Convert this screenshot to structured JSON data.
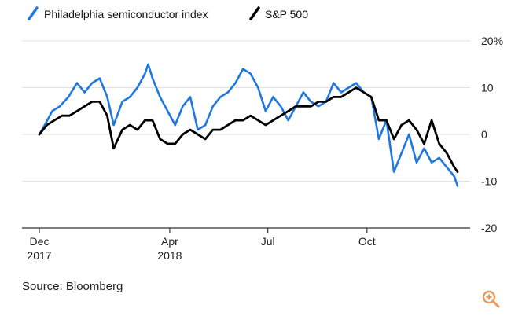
{
  "chart_data": {
    "type": "line",
    "title": "",
    "xlabel": "",
    "ylabel": "",
    "ylim": [
      -20,
      20
    ],
    "xlim": [
      "2017-12-01",
      "2018-12-24"
    ],
    "y_ticks": [
      20,
      10,
      0,
      -10,
      -20
    ],
    "y_tick_labels": [
      "20%",
      "10",
      "0",
      "-10",
      "-20"
    ],
    "x_ticks": [
      {
        "date": "2017-12-01",
        "label": "Dec",
        "sublabel": "2017"
      },
      {
        "date": "2018-04-01",
        "label": "Apr",
        "sublabel": "2018"
      },
      {
        "date": "2018-07-01",
        "label": "Jul",
        "sublabel": ""
      },
      {
        "date": "2018-10-01",
        "label": "Oct",
        "sublabel": ""
      }
    ],
    "grid": true,
    "legend_position": "top-left",
    "series": [
      {
        "name": "Philadelphia semiconductor index",
        "color": "#1f77e0",
        "points": [
          [
            "2017-12-01",
            0
          ],
          [
            "2017-12-06",
            2
          ],
          [
            "2017-12-13",
            5
          ],
          [
            "2017-12-20",
            6
          ],
          [
            "2017-12-28",
            8
          ],
          [
            "2018-01-05",
            11
          ],
          [
            "2018-01-12",
            9
          ],
          [
            "2018-01-19",
            11
          ],
          [
            "2018-01-26",
            12
          ],
          [
            "2018-02-02",
            8
          ],
          [
            "2018-02-08",
            2
          ],
          [
            "2018-02-16",
            7
          ],
          [
            "2018-02-23",
            8
          ],
          [
            "2018-03-02",
            10
          ],
          [
            "2018-03-09",
            13
          ],
          [
            "2018-03-12",
            15
          ],
          [
            "2018-03-16",
            12
          ],
          [
            "2018-03-23",
            8
          ],
          [
            "2018-03-30",
            5
          ],
          [
            "2018-04-06",
            2
          ],
          [
            "2018-04-13",
            6
          ],
          [
            "2018-04-20",
            8
          ],
          [
            "2018-04-27",
            1
          ],
          [
            "2018-05-04",
            2
          ],
          [
            "2018-05-11",
            6
          ],
          [
            "2018-05-18",
            8
          ],
          [
            "2018-05-25",
            9
          ],
          [
            "2018-06-01",
            11
          ],
          [
            "2018-06-08",
            14
          ],
          [
            "2018-06-15",
            13
          ],
          [
            "2018-06-22",
            10
          ],
          [
            "2018-06-29",
            5
          ],
          [
            "2018-07-06",
            8
          ],
          [
            "2018-07-13",
            6
          ],
          [
            "2018-07-20",
            3
          ],
          [
            "2018-07-27",
            6
          ],
          [
            "2018-08-03",
            9
          ],
          [
            "2018-08-10",
            7
          ],
          [
            "2018-08-17",
            6
          ],
          [
            "2018-08-24",
            7
          ],
          [
            "2018-08-31",
            11
          ],
          [
            "2018-09-07",
            9
          ],
          [
            "2018-09-14",
            10
          ],
          [
            "2018-09-21",
            11
          ],
          [
            "2018-09-28",
            9
          ],
          [
            "2018-10-05",
            8
          ],
          [
            "2018-10-12",
            -1
          ],
          [
            "2018-10-19",
            3
          ],
          [
            "2018-10-26",
            -8
          ],
          [
            "2018-11-02",
            -4
          ],
          [
            "2018-11-09",
            0
          ],
          [
            "2018-11-16",
            -6
          ],
          [
            "2018-11-23",
            -3
          ],
          [
            "2018-11-30",
            -6
          ],
          [
            "2018-12-07",
            -5
          ],
          [
            "2018-12-14",
            -7
          ],
          [
            "2018-12-21",
            -9
          ],
          [
            "2018-12-24",
            -11
          ]
        ]
      },
      {
        "name": "S&P 500",
        "color": "#000000",
        "points": [
          [
            "2017-12-01",
            0
          ],
          [
            "2017-12-08",
            2
          ],
          [
            "2017-12-15",
            3
          ],
          [
            "2017-12-22",
            4
          ],
          [
            "2017-12-29",
            4
          ],
          [
            "2018-01-05",
            5
          ],
          [
            "2018-01-12",
            6
          ],
          [
            "2018-01-19",
            7
          ],
          [
            "2018-01-26",
            7
          ],
          [
            "2018-02-02",
            4
          ],
          [
            "2018-02-08",
            -3
          ],
          [
            "2018-02-16",
            1
          ],
          [
            "2018-02-23",
            2
          ],
          [
            "2018-03-02",
            1
          ],
          [
            "2018-03-09",
            3
          ],
          [
            "2018-03-16",
            3
          ],
          [
            "2018-03-23",
            -1
          ],
          [
            "2018-03-30",
            -2
          ],
          [
            "2018-04-06",
            -2
          ],
          [
            "2018-04-13",
            0
          ],
          [
            "2018-04-20",
            1
          ],
          [
            "2018-04-27",
            0
          ],
          [
            "2018-05-04",
            -1
          ],
          [
            "2018-05-11",
            1
          ],
          [
            "2018-05-18",
            1
          ],
          [
            "2018-05-25",
            2
          ],
          [
            "2018-06-01",
            3
          ],
          [
            "2018-06-08",
            3
          ],
          [
            "2018-06-15",
            4
          ],
          [
            "2018-06-22",
            3
          ],
          [
            "2018-06-29",
            2
          ],
          [
            "2018-07-06",
            3
          ],
          [
            "2018-07-13",
            4
          ],
          [
            "2018-07-20",
            5
          ],
          [
            "2018-07-27",
            6
          ],
          [
            "2018-08-03",
            6
          ],
          [
            "2018-08-10",
            6
          ],
          [
            "2018-08-17",
            7
          ],
          [
            "2018-08-24",
            7
          ],
          [
            "2018-08-31",
            8
          ],
          [
            "2018-09-07",
            8
          ],
          [
            "2018-09-14",
            9
          ],
          [
            "2018-09-21",
            10
          ],
          [
            "2018-09-28",
            9
          ],
          [
            "2018-10-05",
            8
          ],
          [
            "2018-10-12",
            3
          ],
          [
            "2018-10-19",
            3
          ],
          [
            "2018-10-26",
            -1
          ],
          [
            "2018-11-02",
            2
          ],
          [
            "2018-11-09",
            3
          ],
          [
            "2018-11-16",
            1
          ],
          [
            "2018-11-23",
            -2
          ],
          [
            "2018-11-30",
            3
          ],
          [
            "2018-12-07",
            -2
          ],
          [
            "2018-12-14",
            -4
          ],
          [
            "2018-12-21",
            -7
          ],
          [
            "2018-12-24",
            -8
          ]
        ]
      }
    ]
  },
  "source": "Source: Bloomberg",
  "zoom_icon": "zoom-in-icon",
  "colors": {
    "accent": "#1f77e0",
    "zoom_icon": "#f0965a",
    "grid": "#e2e2e2"
  }
}
